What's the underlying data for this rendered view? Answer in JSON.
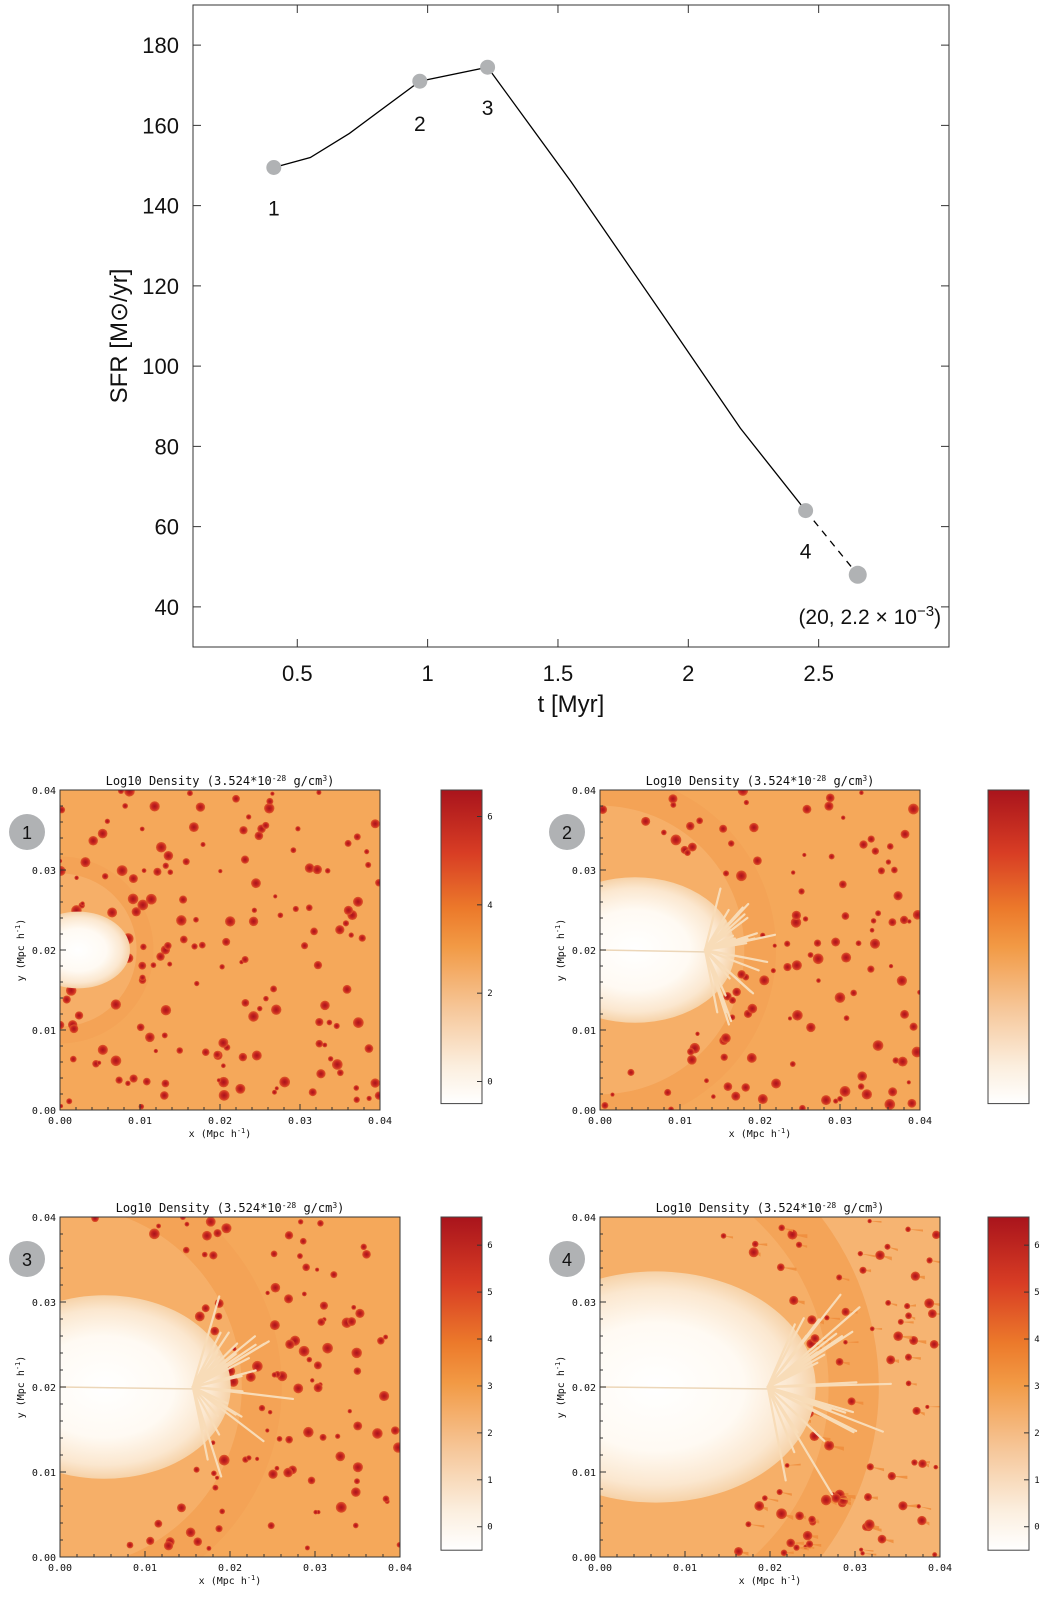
{
  "chart_data": [
    {
      "type": "line",
      "xlabel": "t [Myr]",
      "ylabel": "SFR [M⊙/yr]",
      "xlim": [
        0.1,
        3.0
      ],
      "ylim": [
        30,
        190
      ],
      "x_ticks": [
        0.5,
        1,
        1.5,
        2,
        2.5
      ],
      "x_tick_labels": [
        "0.5",
        "1",
        "1.5",
        "2",
        "2.5"
      ],
      "y_ticks": [
        40,
        60,
        80,
        100,
        120,
        140,
        160,
        180
      ],
      "y_tick_labels": [
        "40",
        "60",
        "80",
        "100",
        "120",
        "140",
        "160",
        "180"
      ],
      "grid": false,
      "series": [
        {
          "style": "solid",
          "color": "#000000",
          "x": [
            0.41,
            0.55,
            0.7,
            0.97,
            1.23,
            1.55,
            1.9,
            2.2,
            2.45
          ],
          "y": [
            149.5,
            152,
            158,
            171,
            174.5,
            146,
            113,
            84.5,
            64
          ]
        },
        {
          "style": "dashed",
          "color": "#000000",
          "x": [
            2.45,
            2.65
          ],
          "y": [
            64,
            48
          ]
        }
      ],
      "markers": [
        {
          "label": "1",
          "x": 0.41,
          "y": 149.5
        },
        {
          "label": "2",
          "x": 0.97,
          "y": 171
        },
        {
          "label": "3",
          "x": 1.23,
          "y": 174.5
        },
        {
          "label": "4",
          "x": 2.45,
          "y": 64
        },
        {
          "label": "",
          "x": 2.65,
          "y": 48
        }
      ],
      "marker_color": "#b0b2b4",
      "annotation": "(20, 2.2 × 10",
      "annotation_exp": "−3",
      "annotation_close": ")"
    },
    {
      "type": "heatmap",
      "panel_label": "1",
      "title": "Log10 Density (3.524*10",
      "title_exp": "-28",
      "title_tail": " g/cm",
      "title_unit_exp": "3",
      "title_close": ")",
      "xlabel": "x (Mpc h",
      "ylabel": "y (Mpc h",
      "axis_exp": "-1",
      "axis_close": ")",
      "xlim": [
        0,
        0.04
      ],
      "ylim": [
        0,
        0.04
      ],
      "x_tick_labels": [
        "0.00",
        "0.01",
        "0.02",
        "0.03",
        "0.04"
      ],
      "y_tick_labels": [
        "0.00",
        "0.01",
        "0.02",
        "0.03",
        "0.04"
      ],
      "colorbar_range": [
        -0.5,
        6.6
      ],
      "colorbar_ticks": [
        "0",
        "2",
        "4",
        "6"
      ],
      "evolution_stage": 0.12
    },
    {
      "type": "heatmap",
      "panel_label": "2",
      "title": "Log10 Density (3.524*10",
      "title_exp": "-28",
      "title_tail": " g/cm",
      "title_unit_exp": "3",
      "title_close": ")",
      "xlabel": "x (Mpc h",
      "ylabel": "y (Mpc h",
      "axis_exp": "-1",
      "axis_close": ")",
      "xlim": [
        0,
        0.04
      ],
      "ylim": [
        0,
        0.04
      ],
      "x_tick_labels": [
        "0.00",
        "0.01",
        "0.02",
        "0.03",
        "0.04"
      ],
      "y_tick_labels": [
        "0.00",
        "0.01",
        "0.02",
        "0.03",
        "0.04"
      ],
      "colorbar_range": [
        -0.5,
        6.6
      ],
      "colorbar_ticks": [],
      "evolution_stage": 0.55
    },
    {
      "type": "heatmap",
      "panel_label": "3",
      "title": "Log10 Density (3.524*10",
      "title_exp": "-28",
      "title_tail": " g/cm",
      "title_unit_exp": "3",
      "title_close": ")",
      "xlabel": "x (Mpc h",
      "ylabel": "y (Mpc h",
      "axis_exp": "-1",
      "axis_close": ")",
      "xlim": [
        0,
        0.04
      ],
      "ylim": [
        0,
        0.04
      ],
      "x_tick_labels": [
        "0.00",
        "0.01",
        "0.02",
        "0.03",
        "0.04"
      ],
      "y_tick_labels": [
        "0.00",
        "0.01",
        "0.02",
        "0.03",
        "0.04"
      ],
      "colorbar_range": [
        -0.5,
        6.6
      ],
      "colorbar_ticks": [
        "0",
        "1",
        "2",
        "3",
        "4",
        "5",
        "6"
      ],
      "evolution_stage": 0.72
    },
    {
      "type": "heatmap",
      "panel_label": "4",
      "title": "Log10 Density (3.524*10",
      "title_exp": "-28",
      "title_tail": " g/cm",
      "title_unit_exp": "3",
      "title_close": ")",
      "xlabel": "x (Mpc h",
      "ylabel": "y (Mpc h",
      "axis_exp": "-1",
      "axis_close": ")",
      "xlim": [
        0,
        0.04
      ],
      "ylim": [
        0,
        0.04
      ],
      "x_tick_labels": [
        "0.00",
        "0.01",
        "0.02",
        "0.03",
        "0.04"
      ],
      "y_tick_labels": [
        "0.00",
        "0.01",
        "0.02",
        "0.03",
        "0.04"
      ],
      "colorbar_range": [
        -0.5,
        6.6
      ],
      "colorbar_ticks": [
        "0",
        "1",
        "2",
        "3",
        "4",
        "5",
        "6"
      ],
      "evolution_stage": 1.0
    }
  ],
  "colors": {
    "density_low": "#fdfbf6",
    "density_mid": "#f29c45",
    "density_high": "#b3161d",
    "background_orange": "#f5a85a",
    "badge": "#b0b2b4"
  }
}
